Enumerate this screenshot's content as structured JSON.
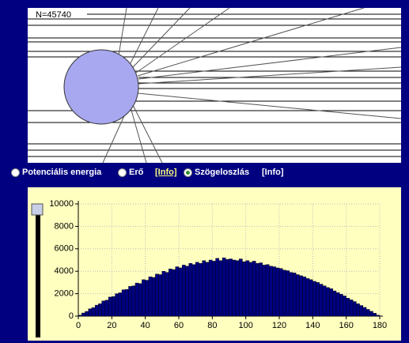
{
  "simulation": {
    "count_label": "N=45740"
  },
  "options": [
    {
      "label": "Potenciális energia"
    },
    {
      "label": "Erő",
      "info": "[Info]"
    },
    {
      "label": "Szögeloszlás",
      "info": "[Info]"
    }
  ],
  "histogram": {
    "bins": [
      0,
      2,
      4,
      6,
      8,
      10,
      12,
      14,
      16,
      18,
      20,
      22,
      24,
      26,
      28,
      30,
      32,
      34,
      36,
      38,
      40,
      42,
      44,
      46,
      48,
      50,
      52,
      54,
      56,
      58,
      60,
      62,
      64,
      66,
      68,
      70,
      72,
      74,
      76,
      78,
      80,
      82,
      84,
      86,
      88,
      90,
      92,
      94,
      96,
      98,
      100,
      102,
      104,
      106,
      108,
      110,
      112,
      114,
      116,
      118,
      120,
      122,
      124,
      126,
      128,
      130,
      132,
      134,
      136,
      138,
      140,
      142,
      144,
      146,
      148,
      150,
      152,
      154,
      156,
      158,
      160,
      162,
      164,
      166,
      168,
      170,
      172,
      174,
      176,
      178,
      180
    ],
    "values": [
      90,
      280,
      420,
      650,
      760,
      980,
      1100,
      1350,
      1420,
      1700,
      1750,
      2000,
      2080,
      2350,
      2380,
      2650,
      2700,
      2950,
      2900,
      3250,
      3200,
      3500,
      3450,
      3750,
      3700,
      4000,
      3900,
      4200,
      4150,
      4400,
      4300,
      4550,
      4450,
      4700,
      4600,
      4800,
      4700,
      4950,
      4800,
      5000,
      4900,
      5150,
      4950,
      5200,
      5050,
      5100,
      5000,
      4950,
      5100,
      4850,
      4950,
      4800,
      4900,
      4700,
      4750,
      4550,
      4600,
      4450,
      4400,
      4300,
      4250,
      4100,
      4050,
      3900,
      3850,
      3700,
      3600,
      3500,
      3350,
      3250,
      3100,
      3000,
      2850,
      2700,
      2550,
      2450,
      2250,
      2100,
      1950,
      1800,
      1600,
      1450,
      1300,
      1100,
      950,
      780,
      600,
      430,
      260,
      90
    ],
    "color": "#000080",
    "xlim": [
      0,
      180
    ],
    "ylim": [
      0,
      10000
    ],
    "xticks": [
      0,
      20,
      40,
      60,
      80,
      100,
      120,
      140,
      160,
      180
    ],
    "yticks": [
      0,
      2000,
      4000,
      6000,
      8000,
      10000
    ],
    "grid": true
  }
}
